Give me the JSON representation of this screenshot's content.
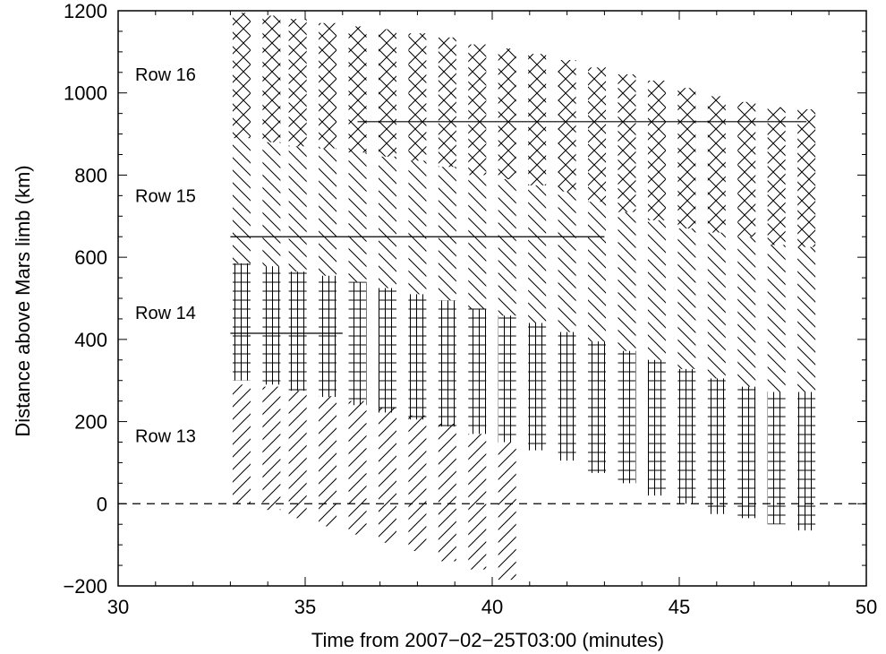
{
  "chart_data": {
    "type": "bar",
    "xlabel": "Time from 2007−02−25T03:00 (minutes)",
    "ylabel": "Distance above Mars limb (km)",
    "xlim": [
      30,
      50
    ],
    "ylim": [
      -200,
      1200
    ],
    "xticks": [
      "30",
      "35",
      "40",
      "45",
      "50"
    ],
    "yticks": [
      "−200",
      "0",
      "200",
      "400",
      "600",
      "800",
      "1000",
      "1200"
    ],
    "xtick_values": [
      30,
      35,
      40,
      45,
      50
    ],
    "ytick_values": [
      -200,
      0,
      200,
      400,
      600,
      800,
      1000,
      1200
    ],
    "reference_line": {
      "y": 0,
      "style": "dashed"
    },
    "observation_times": [
      33.3,
      34.1,
      34.8,
      35.6,
      36.4,
      37.2,
      38.0,
      38.8,
      39.6,
      40.4,
      41.2,
      42.0,
      42.8,
      43.6,
      44.4,
      45.2,
      46.0,
      46.8,
      47.6,
      48.4
    ],
    "series": [
      {
        "name": "Row 13",
        "label_y": 165,
        "pattern": "diagonal-up",
        "bottom": [
          0,
          -15,
          -35,
          -55,
          -75,
          -95,
          -115,
          -140,
          -160,
          -185
        ],
        "top": [
          290,
          285,
          275,
          262,
          250,
          235,
          215,
          195,
          170,
          150
        ]
      },
      {
        "name": "Row 14",
        "label_y": 465,
        "pattern": "grid",
        "median": 415,
        "median_x": [
          33.0,
          36.0
        ],
        "bottom": [
          300,
          290,
          275,
          260,
          240,
          222,
          205,
          188,
          170,
          150,
          130,
          105,
          75,
          50,
          20,
          0,
          -25,
          -35,
          -50,
          -65
        ],
        "top": [
          585,
          578,
          565,
          555,
          540,
          525,
          510,
          495,
          475,
          458,
          440,
          418,
          395,
          372,
          350,
          328,
          305,
          285,
          272,
          272
        ]
      },
      {
        "name": "Row 15",
        "label_y": 750,
        "pattern": "diagonal-down",
        "median": 650,
        "median_x": [
          33.0,
          43.0
        ],
        "bottom": [
          585,
          578,
          565,
          555,
          540,
          525,
          510,
          495,
          475,
          458,
          440,
          418,
          395,
          372,
          350,
          328,
          305,
          285,
          272,
          272
        ],
        "top": [
          890,
          880,
          870,
          865,
          855,
          845,
          835,
          820,
          800,
          790,
          775,
          760,
          735,
          710,
          690,
          670,
          660,
          650,
          630,
          625
        ]
      },
      {
        "name": "Row 16",
        "label_y": 1045,
        "pattern": "crosshatch",
        "median": 930,
        "median_x": [
          36.4,
          48.4
        ],
        "bottom": [
          890,
          880,
          870,
          865,
          855,
          845,
          835,
          820,
          800,
          790,
          775,
          760,
          735,
          710,
          690,
          670,
          660,
          650,
          630,
          625
        ],
        "top": [
          1195,
          1188,
          1180,
          1170,
          1162,
          1155,
          1145,
          1135,
          1118,
          1108,
          1095,
          1080,
          1062,
          1045,
          1030,
          1012,
          992,
          978,
          965,
          960
        ]
      }
    ]
  }
}
